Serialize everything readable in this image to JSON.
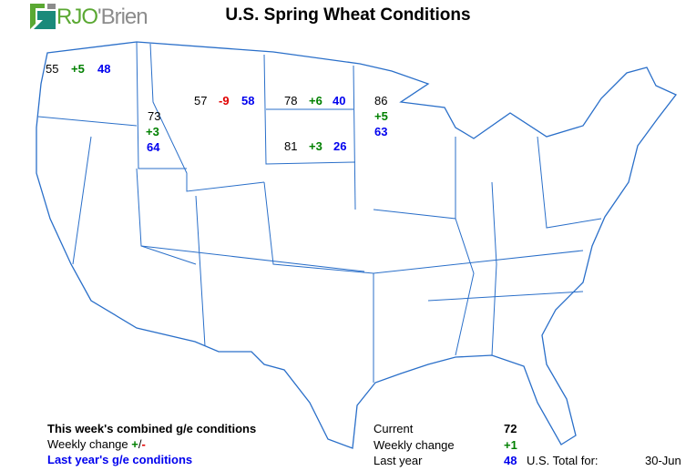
{
  "logo": {
    "text_rjo": "RJO",
    "text_brien": "'Brien",
    "colors": {
      "green": "#5aa832",
      "gray": "#8c8c8c",
      "teal": "#1a8a7a"
    }
  },
  "title": "U.S. Spring Wheat Conditions",
  "states": [
    {
      "state": "WA",
      "current": "55",
      "change": "+5",
      "last_year": "48"
    },
    {
      "state": "ID",
      "current": "73",
      "change": "+3",
      "last_year": "64"
    },
    {
      "state": "MT",
      "current": "57",
      "change": "-9",
      "last_year": "58"
    },
    {
      "state": "ND",
      "current": "78",
      "change": "+6",
      "last_year": "40"
    },
    {
      "state": "SD",
      "current": "81",
      "change": "+3",
      "last_year": "26"
    },
    {
      "state": "MN",
      "current": "86",
      "change": "+5",
      "last_year": "63"
    }
  ],
  "legend": {
    "combined": "This week's combined g/e conditions",
    "weekly_change": "Weekly change ",
    "plus": "+",
    "slash": "/",
    "minus": "-",
    "last_year": "Last year's g/e conditions"
  },
  "summary": {
    "current_label": "Current",
    "current_value": "72",
    "change_label": "Weekly change",
    "change_value": "+1",
    "last_label": "Last year",
    "last_value": "48",
    "total_label": "U.S. Total for:",
    "date": "30-Jun"
  },
  "colors": {
    "current": "#000000",
    "positive": "#008000",
    "negative": "#e00000",
    "last_year": "#0000ee",
    "borders": "#2a6fc9"
  }
}
